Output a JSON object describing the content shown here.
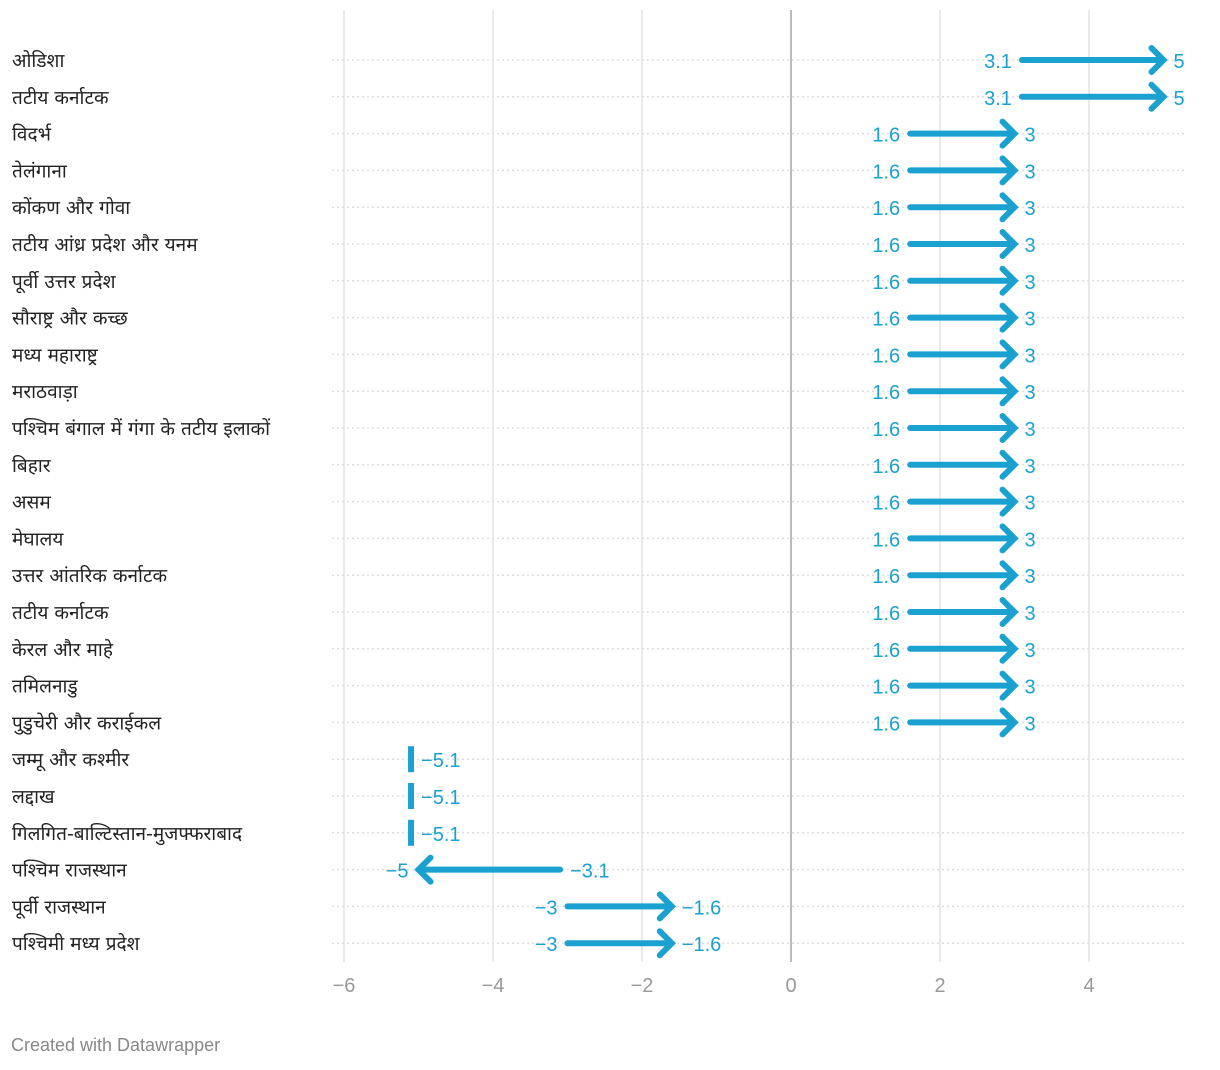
{
  "chart_data": {
    "type": "arrow",
    "xlim": [
      -6,
      5.3
    ],
    "ticks": [
      -6,
      -4,
      -2,
      0,
      2,
      4
    ],
    "tick_labels": [
      "−6",
      "−4",
      "−2",
      "0",
      "2",
      "4"
    ],
    "color": "#1aa1cf",
    "rows": [
      {
        "label": "ओडिशा",
        "start": 3.1,
        "end": 5,
        "start_label": "3.1",
        "end_label": "5"
      },
      {
        "label": "तटीय कर्नाटक",
        "start": 3.1,
        "end": 5,
        "start_label": "3.1",
        "end_label": "5"
      },
      {
        "label": "विदर्भ",
        "start": 1.6,
        "end": 3,
        "start_label": "1.6",
        "end_label": "3"
      },
      {
        "label": "तेलंगाना",
        "start": 1.6,
        "end": 3,
        "start_label": "1.6",
        "end_label": "3"
      },
      {
        "label": "कोंकण और गोवा",
        "start": 1.6,
        "end": 3,
        "start_label": "1.6",
        "end_label": "3"
      },
      {
        "label": "तटीय आंध्र प्रदेश और यनम",
        "start": 1.6,
        "end": 3,
        "start_label": "1.6",
        "end_label": "3"
      },
      {
        "label": "पूर्वी उत्तर प्रदेश",
        "start": 1.6,
        "end": 3,
        "start_label": "1.6",
        "end_label": "3"
      },
      {
        "label": "सौराष्ट्र और कच्छ",
        "start": 1.6,
        "end": 3,
        "start_label": "1.6",
        "end_label": "3"
      },
      {
        "label": "मध्य महाराष्ट्र",
        "start": 1.6,
        "end": 3,
        "start_label": "1.6",
        "end_label": "3"
      },
      {
        "label": "मराठवाड़ा",
        "start": 1.6,
        "end": 3,
        "start_label": "1.6",
        "end_label": "3"
      },
      {
        "label": "पश्चिम बंगाल में गंगा के तटीय इलाकों",
        "start": 1.6,
        "end": 3,
        "start_label": "1.6",
        "end_label": "3"
      },
      {
        "label": "बिहार",
        "start": 1.6,
        "end": 3,
        "start_label": "1.6",
        "end_label": "3"
      },
      {
        "label": "असम",
        "start": 1.6,
        "end": 3,
        "start_label": "1.6",
        "end_label": "3"
      },
      {
        "label": "मेघालय",
        "start": 1.6,
        "end": 3,
        "start_label": "1.6",
        "end_label": "3"
      },
      {
        "label": "उत्तर आंतरिक कर्नाटक",
        "start": 1.6,
        "end": 3,
        "start_label": "1.6",
        "end_label": "3"
      },
      {
        "label": "तटीय कर्नाटक",
        "start": 1.6,
        "end": 3,
        "start_label": "1.6",
        "end_label": "3"
      },
      {
        "label": "केरल और माहे",
        "start": 1.6,
        "end": 3,
        "start_label": "1.6",
        "end_label": "3"
      },
      {
        "label": "तमिलनाडु",
        "start": 1.6,
        "end": 3,
        "start_label": "1.6",
        "end_label": "3"
      },
      {
        "label": "पुडुचेरी और कराईकल",
        "start": 1.6,
        "end": 3,
        "start_label": "1.6",
        "end_label": "3"
      },
      {
        "label": "जम्मू और कश्मीर",
        "start": -5.1,
        "end": -5.1,
        "start_label": "",
        "end_label": "−5.1"
      },
      {
        "label": "लद्दाख",
        "start": -5.1,
        "end": -5.1,
        "start_label": "",
        "end_label": "−5.1"
      },
      {
        "label": "गिलगित-बाल्टिस्तान-मुजफ्फराबाद",
        "start": -5.1,
        "end": -5.1,
        "start_label": "",
        "end_label": "−5.1"
      },
      {
        "label": "पश्चिम राजस्थान",
        "start": -3.1,
        "end": -5,
        "start_label": "−3.1",
        "end_label": "−5"
      },
      {
        "label": "पूर्वी राजस्थान",
        "start": -3,
        "end": -1.6,
        "start_label": "−3",
        "end_label": "−1.6"
      },
      {
        "label": "पश्चिमी मध्य प्रदेश",
        "start": -3,
        "end": -1.6,
        "start_label": "−3",
        "end_label": "−1.6"
      }
    ]
  },
  "footer": {
    "credit": "Created with Datawrapper"
  }
}
